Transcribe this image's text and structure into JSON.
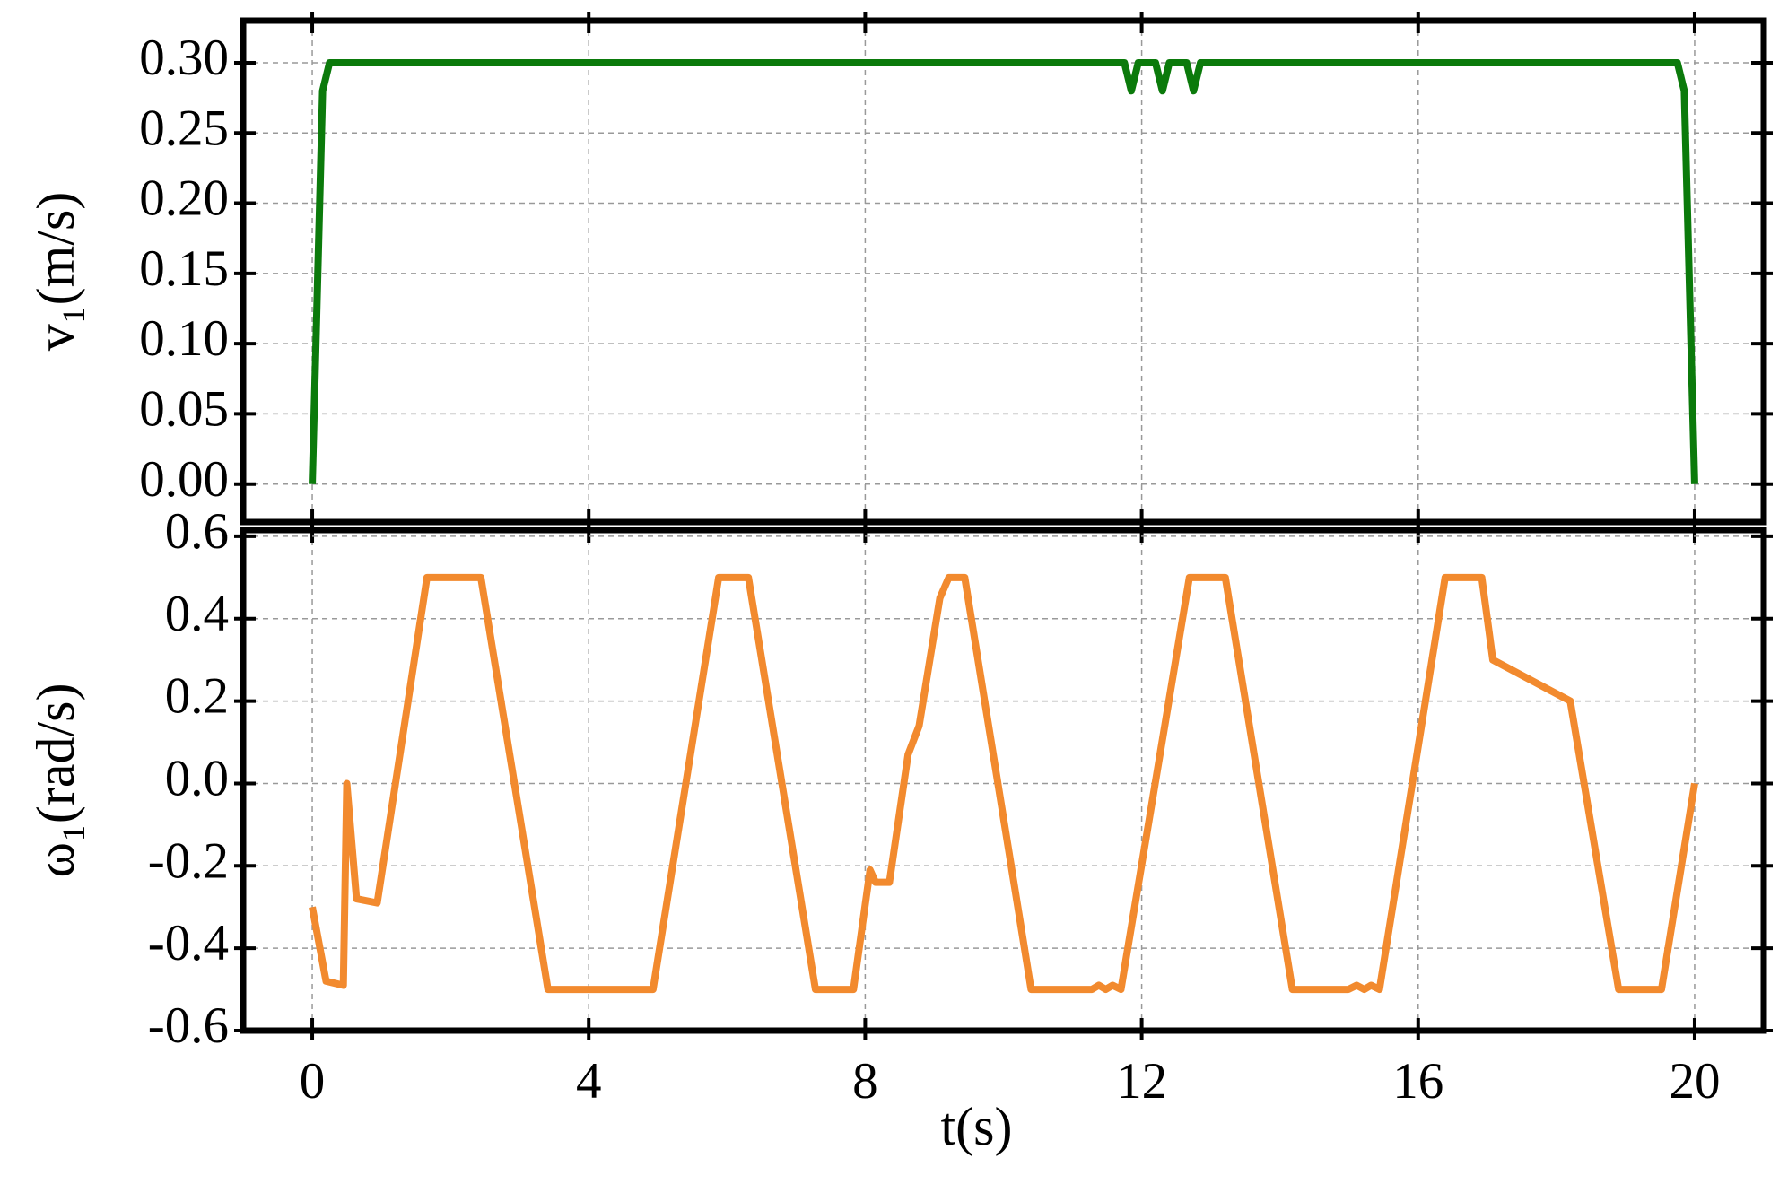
{
  "chart_data": [
    {
      "type": "line",
      "y_label": "v₁(m/s)",
      "xlim": [
        -1,
        21
      ],
      "xticks": [
        0,
        4,
        8,
        12,
        16,
        20
      ],
      "ylim": [
        -0.027,
        0.33
      ],
      "yticks": [
        {
          "value": 0,
          "label": "0.00"
        },
        {
          "value": 0.05,
          "label": "0.05"
        },
        {
          "value": 0.1,
          "label": "0.10"
        },
        {
          "value": 0.15,
          "label": "0.15"
        },
        {
          "value": 0.2,
          "label": "0.20"
        },
        {
          "value": 0.25,
          "label": "0.25"
        },
        {
          "value": 0.3,
          "label": "0.30"
        }
      ],
      "grid": true,
      "series": [
        {
          "color": "#0b7a0b",
          "x": [
            0,
            0.15,
            0.25,
            11.75,
            11.85,
            11.95,
            12.2,
            12.3,
            12.4,
            12.65,
            12.75,
            12.85,
            19.75,
            19.85,
            20
          ],
          "values": [
            0,
            0.28,
            0.3,
            0.3,
            0.28,
            0.3,
            0.3,
            0.28,
            0.3,
            0.3,
            0.28,
            0.3,
            0.3,
            0.28,
            0
          ]
        }
      ]
    },
    {
      "type": "line",
      "y_label": "ω₁(rad/s)",
      "x_label": "t(s)",
      "xlim": [
        -1,
        21
      ],
      "xticks": [
        0,
        4,
        8,
        12,
        16,
        20
      ],
      "ylim": [
        -0.6,
        0.615
      ],
      "yticks": [
        -0.6,
        -0.4,
        -0.2,
        {
          "value": 0,
          "label": "0.0"
        },
        0.2,
        0.4,
        0.6
      ],
      "grid": true,
      "series": [
        {
          "color": "#f28a2e",
          "x": [
            0,
            0.2,
            0.45,
            0.5,
            0.64,
            0.94,
            1.66,
            2.44,
            3.41,
            4.93,
            5.88,
            6.31,
            7.28,
            7.83,
            8.07,
            8.15,
            8.35,
            8.62,
            8.78,
            9.08,
            9.21,
            9.44,
            10.4,
            11.28,
            11.38,
            11.48,
            11.58,
            11.7,
            12.69,
            13.21,
            14.18,
            14.99,
            15.11,
            15.22,
            15.32,
            15.44,
            16.39,
            16.92,
            17.08,
            18.2,
            18.9,
            19.52,
            20
          ],
          "values": [
            -0.3,
            -0.48,
            -0.49,
            0,
            -0.28,
            -0.29,
            0.5,
            0.5,
            -0.5,
            -0.5,
            0.5,
            0.5,
            -0.5,
            -0.5,
            -0.21,
            -0.24,
            -0.24,
            0.07,
            0.14,
            0.45,
            0.5,
            0.5,
            -0.5,
            -0.5,
            -0.49,
            -0.5,
            -0.49,
            -0.5,
            0.5,
            0.5,
            -0.5,
            -0.5,
            -0.49,
            -0.5,
            -0.49,
            -0.5,
            0.5,
            0.5,
            0.3,
            0.2,
            -0.5,
            -0.5,
            0
          ]
        }
      ]
    }
  ]
}
